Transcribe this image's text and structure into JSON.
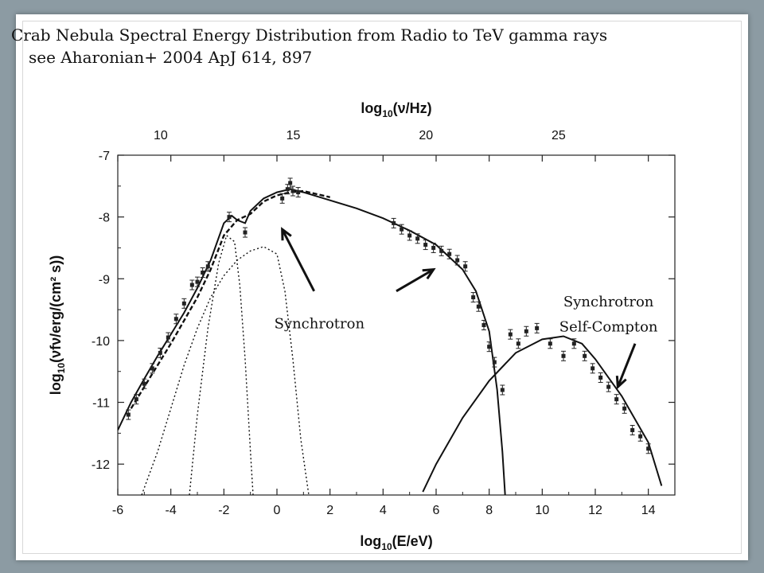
{
  "slide": {
    "title_line1": "Crab Nebula Spectral Energy Distribution from Radio to TeV gamma rays",
    "title_line2": "see Aharonian+ 2004 ApJ 614, 897"
  },
  "chart_data": {
    "type": "scatter",
    "xlabel": "log10(E/eV)",
    "ylabel": "log10(νfν/erg/(cm² s))",
    "x2label": "log10(ν/Hz)",
    "xlim": [
      -6,
      15
    ],
    "ylim": [
      -12.5,
      -7
    ],
    "xticks": [
      -6,
      -4,
      -2,
      0,
      2,
      4,
      6,
      8,
      10,
      12,
      14
    ],
    "yticks": [
      -12,
      -11,
      -10,
      -9,
      -8,
      -7
    ],
    "x2ticks": [
      10,
      15,
      20,
      25
    ],
    "annotations": [
      {
        "text": "Synchrotron",
        "x": 1.6,
        "y": -9.8
      },
      {
        "text": "Synchrotron",
        "x": 12.5,
        "y": -9.45
      },
      {
        "text": "Self-Compton",
        "x": 12.5,
        "y": -9.85
      }
    ],
    "series": [
      {
        "style": "solid",
        "x": [
          -6,
          -5.5,
          -5,
          -4.5,
          -4,
          -3.5,
          -3,
          -2.5,
          -2,
          -1.7,
          -1.5,
          -1.2,
          -1,
          -0.5,
          0,
          0.5,
          1,
          2,
          3,
          4,
          5,
          6,
          7,
          7.5,
          8,
          8.3,
          8.5,
          8.6
        ],
        "y": [
          -11.45,
          -11.0,
          -10.62,
          -10.25,
          -9.9,
          -9.55,
          -9.15,
          -8.7,
          -8.1,
          -7.98,
          -8.05,
          -8.1,
          -7.9,
          -7.7,
          -7.6,
          -7.55,
          -7.6,
          -7.73,
          -7.86,
          -8.02,
          -8.22,
          -8.45,
          -8.85,
          -9.2,
          -9.85,
          -10.8,
          -11.8,
          -12.5
        ]
      },
      {
        "style": "solid",
        "x": [
          5.5,
          6,
          7,
          8,
          9,
          10,
          10.8,
          11.5,
          12,
          13,
          14,
          14.5
        ],
        "y": [
          -12.45,
          -12.0,
          -11.25,
          -10.65,
          -10.2,
          -9.98,
          -9.93,
          -10.05,
          -10.3,
          -10.9,
          -11.65,
          -12.35
        ]
      },
      {
        "style": "dashed",
        "x": [
          -5.5,
          -5,
          -4,
          -3,
          -2.5,
          -2,
          -1.5,
          -1,
          -0.5,
          0,
          0.5,
          1,
          2
        ],
        "y": [
          -11.1,
          -10.75,
          -10.05,
          -9.3,
          -8.85,
          -8.3,
          -8.05,
          -7.95,
          -7.75,
          -7.65,
          -7.6,
          -7.58,
          -7.68
        ]
      },
      {
        "style": "dotted",
        "x": [
          -5.1,
          -4.5,
          -4,
          -3.5,
          -3,
          -2.5,
          -2,
          -1.5,
          -1,
          -0.5,
          0,
          0.3,
          0.6,
          0.9,
          1.2
        ],
        "y": [
          -12.5,
          -11.8,
          -11.1,
          -10.4,
          -9.8,
          -9.3,
          -8.95,
          -8.7,
          -8.55,
          -8.48,
          -8.6,
          -9.2,
          -10.3,
          -11.6,
          -12.5
        ]
      },
      {
        "style": "dotted",
        "x": [
          -3.3,
          -3.0,
          -2.6,
          -2.2,
          -1.9,
          -1.6,
          -1.4,
          -1.2,
          -1.0,
          -0.9
        ],
        "y": [
          -12.5,
          -11.2,
          -9.8,
          -8.75,
          -8.3,
          -8.4,
          -9.1,
          -10.3,
          -11.8,
          -12.5
        ]
      },
      {
        "style": "markers",
        "x": [
          -5.6,
          -5.3,
          -5.0,
          -4.7,
          -4.4,
          -4.1,
          -3.8,
          -3.5,
          -3.2,
          -3.0,
          -2.8,
          -2.6,
          -1.8,
          -1.2,
          0.2,
          0.4,
          0.5,
          0.6,
          0.8,
          4.4,
          4.7,
          5.0,
          5.3,
          5.6,
          5.9,
          6.2,
          6.5,
          6.8,
          7.1,
          7.4,
          7.6,
          7.8,
          8.0,
          8.2,
          8.5,
          8.8,
          9.1,
          9.4,
          9.8,
          10.3,
          10.8,
          11.2,
          11.6,
          11.9,
          12.2,
          12.5,
          12.8,
          13.1,
          13.4,
          13.7,
          14.0
        ],
        "y": [
          -11.2,
          -10.95,
          -10.7,
          -10.45,
          -10.2,
          -9.95,
          -9.65,
          -9.4,
          -9.1,
          -9.05,
          -8.9,
          -8.8,
          -8.0,
          -8.25,
          -7.7,
          -7.55,
          -7.45,
          -7.58,
          -7.6,
          -8.1,
          -8.2,
          -8.3,
          -8.35,
          -8.45,
          -8.5,
          -8.55,
          -8.6,
          -8.7,
          -8.8,
          -9.3,
          -9.45,
          -9.75,
          -10.1,
          -10.35,
          -10.8,
          -9.9,
          -10.05,
          -9.85,
          -9.8,
          -10.05,
          -10.25,
          -10.05,
          -10.25,
          -10.45,
          -10.6,
          -10.75,
          -10.95,
          -11.1,
          -11.45,
          -11.55,
          -11.75
        ]
      }
    ]
  }
}
